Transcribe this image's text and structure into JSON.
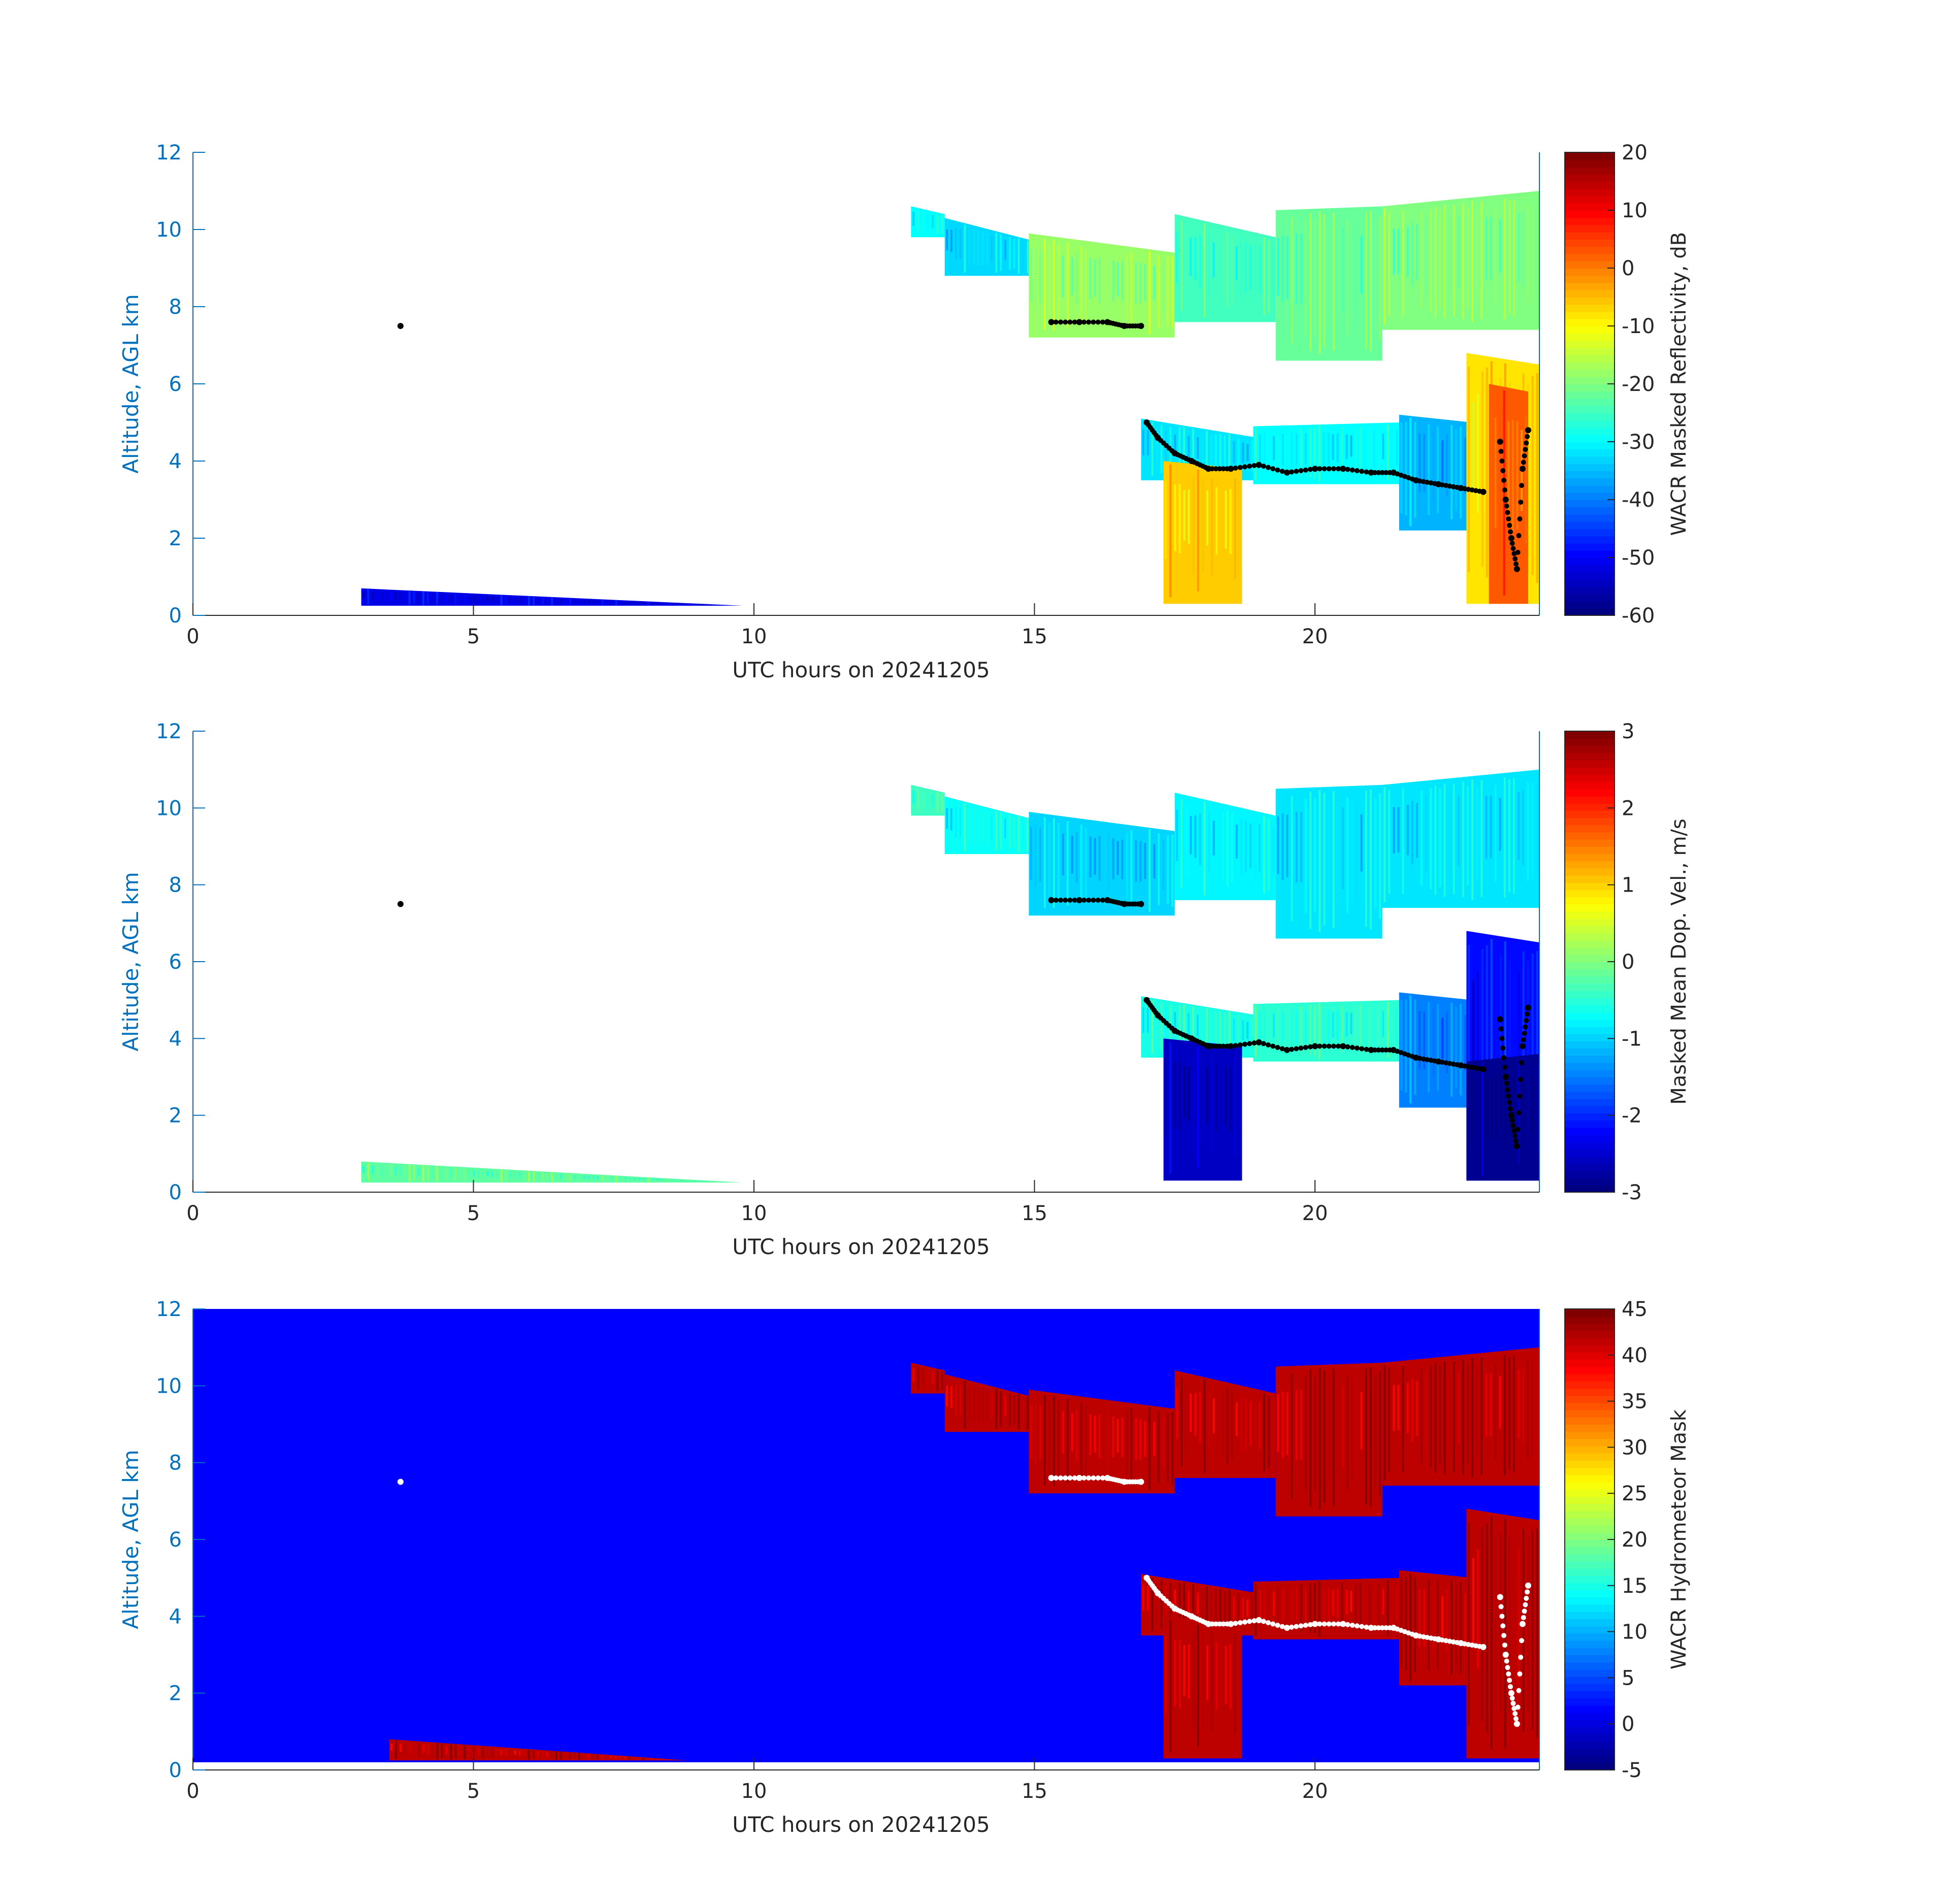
{
  "figure": {
    "colors": {
      "axis_label": "#0072BD",
      "axis_line": "#0072BD",
      "text": "#262626",
      "mask_background": "#0000ff",
      "cloud_base_marker_dark": "#000000",
      "cloud_base_marker_light": "#ffffff"
    }
  },
  "chart_data": [
    {
      "type": "heatmap",
      "title": "",
      "xlabel": "UTC hours on 20241205",
      "ylabel": "Altitude, AGL km",
      "xlim": [
        0,
        24
      ],
      "ylim": [
        0,
        12
      ],
      "x_ticks": [
        "0",
        "5",
        "10",
        "15",
        "20"
      ],
      "y_ticks": [
        "0",
        "2",
        "4",
        "6",
        "8",
        "10",
        "12"
      ],
      "colorbar": {
        "label": "WACR Masked Reflectivity, dB",
        "range": [
          -60,
          20
        ],
        "ticks": [
          "20",
          "10",
          "0",
          "-10",
          "-20",
          "-30",
          "-40",
          "-50",
          "-60"
        ],
        "colormap": "jet"
      },
      "background": "none",
      "marker_color": "black",
      "blobs": [
        {
          "x": [
            3.0,
            9.8
          ],
          "ytop": [
            0.7,
            0.25
          ],
          "ybot": 0.25,
          "value": -52
        },
        {
          "x": [
            12.8,
            13.4
          ],
          "ytop": [
            10.6,
            10.4
          ],
          "ybot": 9.8,
          "value": -30
        },
        {
          "x": [
            13.4,
            15.0
          ],
          "ytop": [
            10.3,
            9.7
          ],
          "ybot": 8.8,
          "value": -33
        },
        {
          "x": [
            14.9,
            17.5
          ],
          "ytop": [
            9.9,
            9.4
          ],
          "ybot": 7.2,
          "value": -18
        },
        {
          "x": [
            17.5,
            19.3
          ],
          "ytop": [
            10.4,
            9.8
          ],
          "ybot": 7.6,
          "value": -25
        },
        {
          "x": [
            19.3,
            21.2
          ],
          "ytop": [
            10.5,
            10.6
          ],
          "ybot": 6.6,
          "value": -22
        },
        {
          "x": [
            21.2,
            24.0
          ],
          "ytop": [
            10.6,
            11.0
          ],
          "ybot": 7.4,
          "value": -20
        },
        {
          "x": [
            16.9,
            19.0
          ],
          "ytop": [
            5.1,
            4.6
          ],
          "ybot": 3.5,
          "value": -32
        },
        {
          "x": [
            17.3,
            18.7
          ],
          "ytop": [
            4.0,
            3.8
          ],
          "ybot": 0.3,
          "value": -6
        },
        {
          "x": [
            18.9,
            21.5
          ],
          "ytop": [
            4.9,
            5.0
          ],
          "ybot": 3.4,
          "value": -30
        },
        {
          "x": [
            21.5,
            22.8
          ],
          "ytop": [
            5.2,
            5.0
          ],
          "ybot": 2.2,
          "value": -36
        },
        {
          "x": [
            22.7,
            24.0
          ],
          "ytop": [
            6.8,
            6.5
          ],
          "ybot": 0.3,
          "value": -8
        },
        {
          "x": [
            23.1,
            23.8
          ],
          "ytop": [
            6.0,
            5.8
          ],
          "ybot": 0.3,
          "value": 3
        }
      ],
      "cloud_base_points": [
        {
          "x": [
            3.7
          ],
          "y": [
            7.5
          ]
        },
        {
          "x": [
            15.3,
            15.8,
            16.3,
            16.6,
            16.9
          ],
          "y": [
            7.6,
            7.6,
            7.6,
            7.5,
            7.5
          ]
        },
        {
          "x": [
            17.0,
            17.2,
            17.5,
            17.8,
            18.1,
            18.5,
            19.0,
            19.5,
            20.0,
            20.5,
            21.0,
            21.4,
            21.8,
            22.2,
            22.6,
            23.0
          ],
          "y": [
            5.0,
            4.6,
            4.2,
            4.0,
            3.8,
            3.8,
            3.9,
            3.7,
            3.8,
            3.8,
            3.7,
            3.7,
            3.5,
            3.4,
            3.3,
            3.2
          ]
        },
        {
          "x": [
            23.3,
            23.4,
            23.5,
            23.6,
            23.7,
            23.8
          ],
          "y": [
            4.5,
            3.0,
            2.0,
            1.2,
            3.8,
            4.8
          ]
        }
      ]
    },
    {
      "type": "heatmap",
      "title": "",
      "xlabel": "UTC hours on 20241205",
      "ylabel": "Altitude, AGL km",
      "xlim": [
        0,
        24
      ],
      "ylim": [
        0,
        12
      ],
      "x_ticks": [
        "0",
        "5",
        "10",
        "15",
        "20"
      ],
      "y_ticks": [
        "0",
        "2",
        "4",
        "6",
        "8",
        "10",
        "12"
      ],
      "colorbar": {
        "label": "Masked Mean Dop. Vel., m/s",
        "range": [
          -3,
          3
        ],
        "ticks": [
          "3",
          "2",
          "1",
          "0",
          "-1",
          "-2",
          "-3"
        ],
        "colormap": "jet"
      },
      "background": "none",
      "marker_color": "black",
      "blobs": [
        {
          "x": [
            3.0,
            9.8
          ],
          "ytop": [
            0.8,
            0.25
          ],
          "ybot": 0.25,
          "value": -0.2
        },
        {
          "x": [
            12.8,
            13.4
          ],
          "ytop": [
            10.6,
            10.4
          ],
          "ybot": 9.8,
          "value": -0.4
        },
        {
          "x": [
            13.4,
            15.0
          ],
          "ytop": [
            10.3,
            9.7
          ],
          "ybot": 8.8,
          "value": -0.7
        },
        {
          "x": [
            14.9,
            17.5
          ],
          "ytop": [
            9.9,
            9.4
          ],
          "ybot": 7.2,
          "value": -1.0
        },
        {
          "x": [
            17.5,
            19.3
          ],
          "ytop": [
            10.4,
            9.8
          ],
          "ybot": 7.6,
          "value": -0.8
        },
        {
          "x": [
            19.3,
            21.2
          ],
          "ytop": [
            10.5,
            10.6
          ],
          "ybot": 6.6,
          "value": -0.9
        },
        {
          "x": [
            21.2,
            24.0
          ],
          "ytop": [
            10.6,
            11.0
          ],
          "ybot": 7.4,
          "value": -0.9
        },
        {
          "x": [
            16.9,
            19.0
          ],
          "ytop": [
            5.1,
            4.6
          ],
          "ybot": 3.5,
          "value": -0.6
        },
        {
          "x": [
            17.3,
            18.7
          ],
          "ytop": [
            4.0,
            3.8
          ],
          "ybot": 0.3,
          "value": -2.6
        },
        {
          "x": [
            18.9,
            21.5
          ],
          "ytop": [
            4.9,
            5.0
          ],
          "ybot": 3.4,
          "value": -0.5
        },
        {
          "x": [
            21.5,
            22.8
          ],
          "ytop": [
            5.2,
            5.0
          ],
          "ybot": 2.2,
          "value": -1.5
        },
        {
          "x": [
            22.7,
            24.0
          ],
          "ytop": [
            6.8,
            6.5
          ],
          "ybot": 0.3,
          "value": -2.2
        },
        {
          "x": [
            22.7,
            24.0
          ],
          "ytop": [
            3.4,
            3.6
          ],
          "ybot": 0.3,
          "value": -2.9
        }
      ],
      "cloud_base_points": [
        {
          "x": [
            3.7
          ],
          "y": [
            7.5
          ]
        },
        {
          "x": [
            15.3,
            15.8,
            16.3,
            16.6,
            16.9
          ],
          "y": [
            7.6,
            7.6,
            7.6,
            7.5,
            7.5
          ]
        },
        {
          "x": [
            17.0,
            17.2,
            17.5,
            17.8,
            18.1,
            18.5,
            19.0,
            19.5,
            20.0,
            20.5,
            21.0,
            21.4,
            21.8,
            22.2,
            22.6,
            23.0
          ],
          "y": [
            5.0,
            4.6,
            4.2,
            4.0,
            3.8,
            3.8,
            3.9,
            3.7,
            3.8,
            3.8,
            3.7,
            3.7,
            3.5,
            3.4,
            3.3,
            3.2
          ]
        },
        {
          "x": [
            23.3,
            23.4,
            23.5,
            23.6,
            23.7,
            23.8
          ],
          "y": [
            4.5,
            3.0,
            2.0,
            1.2,
            3.8,
            4.8
          ]
        }
      ]
    },
    {
      "type": "heatmap",
      "title": "",
      "xlabel": "UTC hours on 20241205",
      "ylabel": "Altitude, AGL km",
      "xlim": [
        0,
        24
      ],
      "ylim": [
        0,
        12
      ],
      "x_ticks": [
        "0",
        "5",
        "10",
        "15",
        "20"
      ],
      "y_ticks": [
        "0",
        "2",
        "4",
        "6",
        "8",
        "10",
        "12"
      ],
      "colorbar": {
        "label": "WACR Hydrometeor Mask",
        "range": [
          -5,
          45
        ],
        "ticks": [
          "45",
          "40",
          "35",
          "30",
          "25",
          "20",
          "15",
          "10",
          "5",
          "0",
          "-5"
        ],
        "colormap": "jet"
      },
      "background": "mask",
      "marker_color": "white",
      "blobs": [
        {
          "x": [
            3.5,
            8.8
          ],
          "ytop": [
            0.8,
            0.25
          ],
          "ybot": 0.25,
          "value": 42
        },
        {
          "x": [
            12.8,
            13.4
          ],
          "ytop": [
            10.6,
            10.4
          ],
          "ybot": 9.8,
          "value": 42
        },
        {
          "x": [
            13.4,
            15.0
          ],
          "ytop": [
            10.3,
            9.7
          ],
          "ybot": 8.8,
          "value": 42
        },
        {
          "x": [
            14.9,
            17.5
          ],
          "ytop": [
            9.9,
            9.4
          ],
          "ybot": 7.2,
          "value": 42
        },
        {
          "x": [
            17.5,
            19.3
          ],
          "ytop": [
            10.4,
            9.8
          ],
          "ybot": 7.6,
          "value": 42
        },
        {
          "x": [
            19.3,
            21.2
          ],
          "ytop": [
            10.5,
            10.6
          ],
          "ybot": 6.6,
          "value": 42
        },
        {
          "x": [
            21.2,
            24.0
          ],
          "ytop": [
            10.6,
            11.0
          ],
          "ybot": 7.4,
          "value": 42
        },
        {
          "x": [
            16.9,
            19.0
          ],
          "ytop": [
            5.1,
            4.6
          ],
          "ybot": 3.5,
          "value": 42
        },
        {
          "x": [
            17.3,
            18.7
          ],
          "ytop": [
            4.0,
            3.8
          ],
          "ybot": 0.3,
          "value": 42
        },
        {
          "x": [
            18.9,
            21.5
          ],
          "ytop": [
            4.9,
            5.0
          ],
          "ybot": 3.4,
          "value": 42
        },
        {
          "x": [
            21.5,
            22.8
          ],
          "ytop": [
            5.2,
            5.0
          ],
          "ybot": 2.2,
          "value": 42
        },
        {
          "x": [
            22.7,
            24.0
          ],
          "ytop": [
            6.8,
            6.5
          ],
          "ybot": 0.3,
          "value": 42
        }
      ],
      "cloud_base_points": [
        {
          "x": [
            3.7
          ],
          "y": [
            7.5
          ]
        },
        {
          "x": [
            15.3,
            15.8,
            16.3,
            16.6,
            16.9
          ],
          "y": [
            7.6,
            7.6,
            7.6,
            7.5,
            7.5
          ]
        },
        {
          "x": [
            17.0,
            17.2,
            17.5,
            17.8,
            18.1,
            18.5,
            19.0,
            19.5,
            20.0,
            20.5,
            21.0,
            21.4,
            21.8,
            22.2,
            22.6,
            23.0
          ],
          "y": [
            5.0,
            4.6,
            4.2,
            4.0,
            3.8,
            3.8,
            3.9,
            3.7,
            3.8,
            3.8,
            3.7,
            3.7,
            3.5,
            3.4,
            3.3,
            3.2
          ]
        },
        {
          "x": [
            23.3,
            23.4,
            23.5,
            23.6,
            23.7,
            23.8
          ],
          "y": [
            4.5,
            3.0,
            2.0,
            1.2,
            3.8,
            4.8
          ]
        }
      ]
    }
  ]
}
